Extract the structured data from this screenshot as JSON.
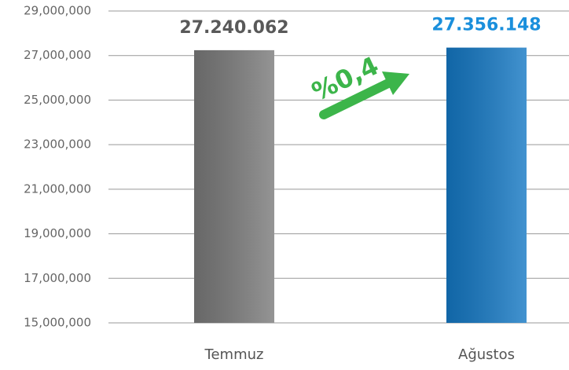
{
  "chart_data": {
    "type": "bar",
    "categories": [
      "Temmuz",
      "Ağustos"
    ],
    "values": [
      27240062,
      27356148
    ],
    "value_labels": [
      "27.240.062",
      "27.356.148"
    ],
    "colors": [
      "#7a7a7a",
      "#1478c4"
    ],
    "label_colors": [
      "#595959",
      "#1a8fdc"
    ],
    "annotation": "%0,4",
    "annotation_color": "#3cb54a",
    "ylim": [
      15000000,
      29000000
    ],
    "yticks": [
      {
        "value": 15000000,
        "label": "15,000,000"
      },
      {
        "value": 17000000,
        "label": "17,000,000"
      },
      {
        "value": 19000000,
        "label": "19,000,000"
      },
      {
        "value": 21000000,
        "label": "21,000,000"
      },
      {
        "value": 23000000,
        "label": "23,000,000"
      },
      {
        "value": 25000000,
        "label": "25,000,000"
      },
      {
        "value": 27000000,
        "label": "27,000,000"
      },
      {
        "value": 29000000,
        "label": "29,000,000"
      }
    ],
    "grid": true
  }
}
